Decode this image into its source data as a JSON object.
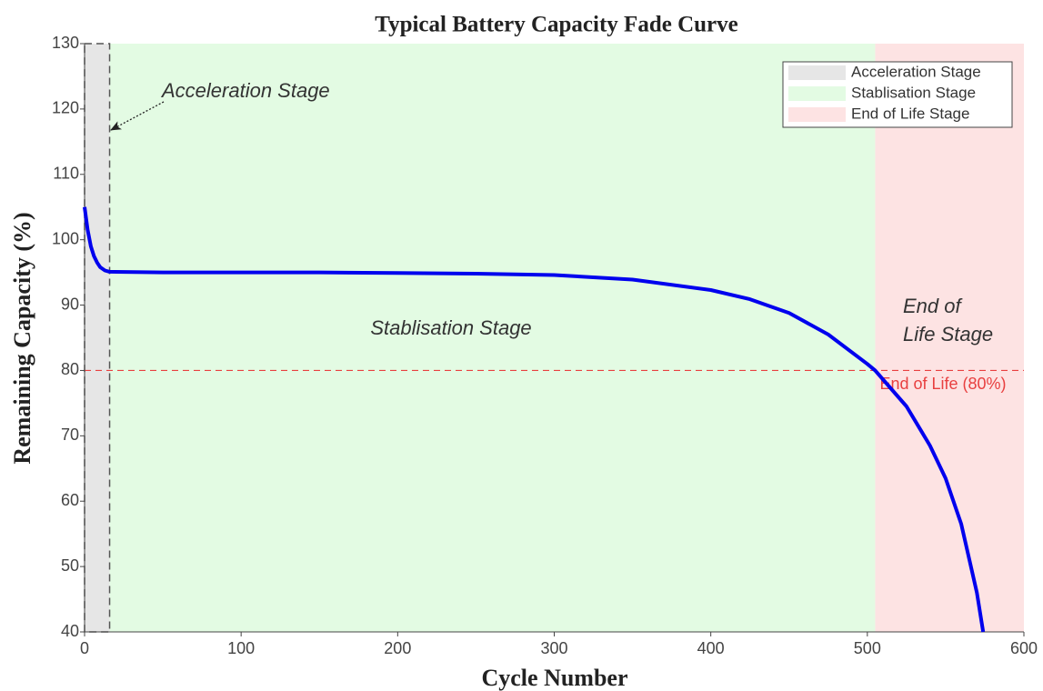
{
  "chart_data": {
    "type": "line",
    "title": "Typical Battery Capacity Fade Curve",
    "x_label": "Cycle Number",
    "y_label": "Remaining Capacity (%)",
    "x": [
      0,
      2,
      4,
      6,
      8,
      10,
      13,
      16,
      50,
      100,
      150,
      200,
      250,
      300,
      350,
      400,
      425,
      450,
      475,
      500,
      505,
      525,
      540,
      550,
      560,
      570,
      574
    ],
    "values": [
      105,
      101.5,
      99,
      97.5,
      96.5,
      95.8,
      95.3,
      95.1,
      95,
      95,
      95,
      94.9,
      94.8,
      94.6,
      93.9,
      92.3,
      90.9,
      88.8,
      85.5,
      81,
      80,
      74.5,
      68.5,
      63.5,
      56.5,
      46,
      40
    ],
    "color": "#0000ee",
    "xlim": [
      0,
      600
    ],
    "ylim": [
      40,
      130
    ],
    "xticks": [
      0,
      100,
      200,
      300,
      400,
      500,
      600
    ],
    "yticks": [
      40,
      50,
      60,
      70,
      80,
      90,
      100,
      110,
      120,
      130
    ],
    "regions": [
      {
        "name": "Acceleration Stage",
        "start": 0,
        "end": 16,
        "color": "#e6e6e6"
      },
      {
        "name": "Stablisation Stage",
        "start": 16,
        "end": 505,
        "color": "#e3fbe3"
      },
      {
        "name": "End of Life Stage",
        "start": 505,
        "end": 600,
        "color": "#fde3e3"
      }
    ],
    "threshold": {
      "value": 80,
      "label": "End of Life (80%)",
      "color": "#e84040"
    },
    "annotations": {
      "acceleration": "Acceleration Stage",
      "stablisation": "Stablisation Stage",
      "end_of_life": [
        "End of",
        "Life Stage"
      ]
    },
    "legend": "upper right"
  }
}
